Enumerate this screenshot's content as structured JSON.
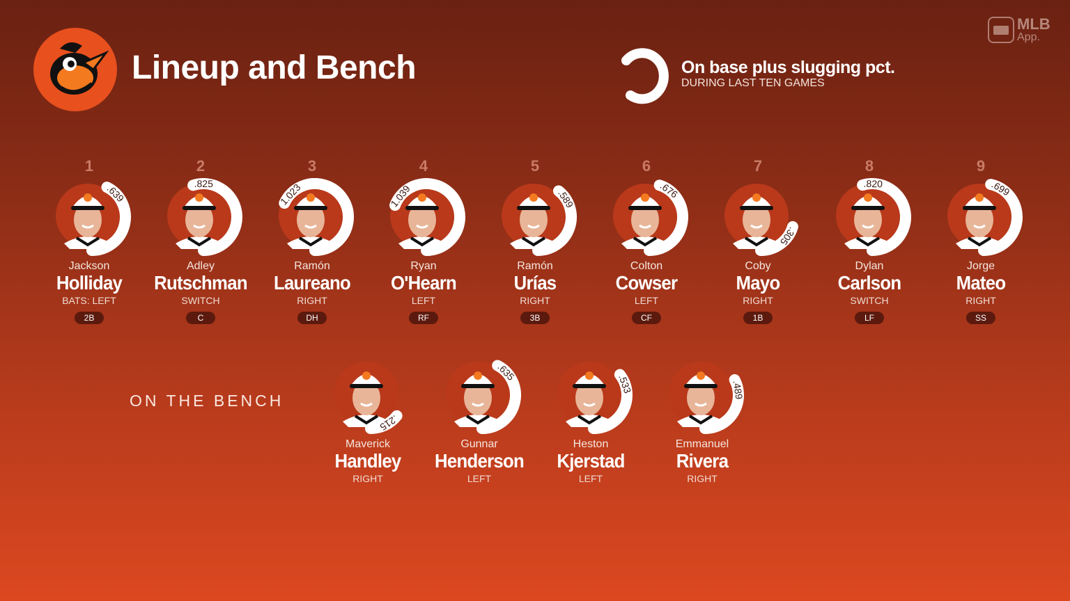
{
  "header": {
    "title": "Lineup and Bench",
    "team_logo": "orioles-bird-logo"
  },
  "legend": {
    "title": "On base plus slugging pct.",
    "subtitle": "DURING LAST TEN GAMES"
  },
  "branding": {
    "mlb": "MLB",
    "app": "App."
  },
  "colors": {
    "arc": "#ffffff",
    "photo_bg": "#b9391a",
    "pos_badge": "#5c1a0e",
    "logo_bg": "#e8501e"
  },
  "lineup": [
    {
      "order": "1",
      "first": "Jackson",
      "last": "Holliday",
      "bats": "BATS: LEFT",
      "pos": "2B",
      "ops": ".639"
    },
    {
      "order": "2",
      "first": "Adley",
      "last": "Rutschman",
      "bats": "SWITCH",
      "pos": "C",
      "ops": ".825"
    },
    {
      "order": "3",
      "first": "Ramón",
      "last": "Laureano",
      "bats": "RIGHT",
      "pos": "DH",
      "ops": "1.023"
    },
    {
      "order": "4",
      "first": "Ryan",
      "last": "O'Hearn",
      "bats": "LEFT",
      "pos": "RF",
      "ops": "1.039"
    },
    {
      "order": "5",
      "first": "Ramón",
      "last": "Urías",
      "bats": "RIGHT",
      "pos": "3B",
      "ops": ".589"
    },
    {
      "order": "6",
      "first": "Colton",
      "last": "Cowser",
      "bats": "LEFT",
      "pos": "CF",
      "ops": ".676"
    },
    {
      "order": "7",
      "first": "Coby",
      "last": "Mayo",
      "bats": "RIGHT",
      "pos": "1B",
      "ops": ".305"
    },
    {
      "order": "8",
      "first": "Dylan",
      "last": "Carlson",
      "bats": "SWITCH",
      "pos": "LF",
      "ops": ".820"
    },
    {
      "order": "9",
      "first": "Jorge",
      "last": "Mateo",
      "bats": "RIGHT",
      "pos": "SS",
      "ops": ".699"
    }
  ],
  "bench": {
    "label": "ON THE BENCH",
    "players": [
      {
        "first": "Maverick",
        "last": "Handley",
        "bats": "RIGHT",
        "ops": ".215"
      },
      {
        "first": "Gunnar",
        "last": "Henderson",
        "bats": "LEFT",
        "ops": ".635"
      },
      {
        "first": "Heston",
        "last": "Kjerstad",
        "bats": "LEFT",
        "ops": ".533"
      },
      {
        "first": "Emmanuel",
        "last": "Rivera",
        "bats": "RIGHT",
        "ops": ".489"
      }
    ]
  }
}
